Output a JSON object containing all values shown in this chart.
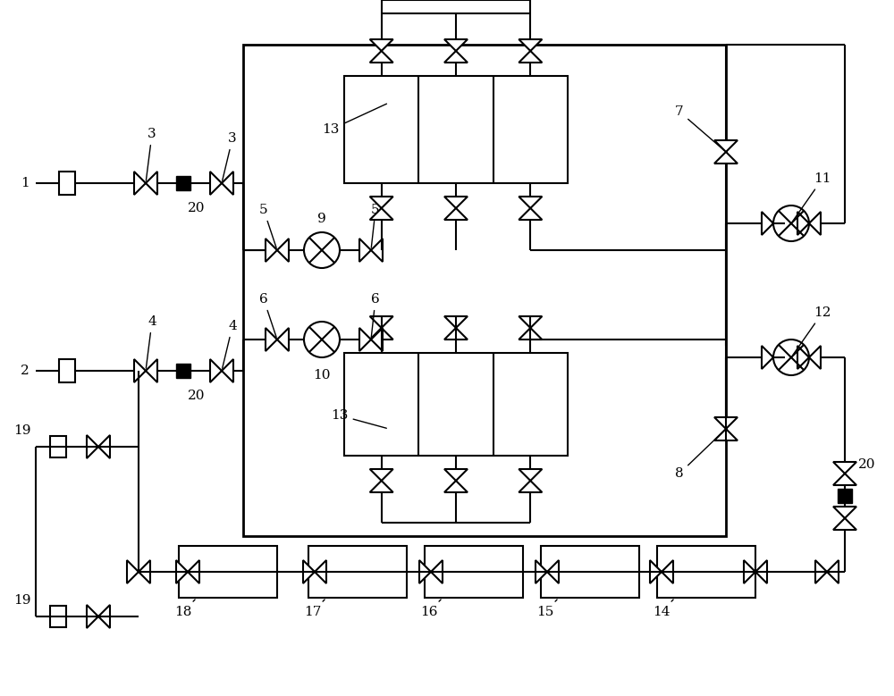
{
  "fig_w": 10.0,
  "fig_h": 7.79,
  "dpi": 100,
  "lw": 1.5,
  "lw2": 2.0,
  "fs": 11,
  "bg": "#ffffff"
}
